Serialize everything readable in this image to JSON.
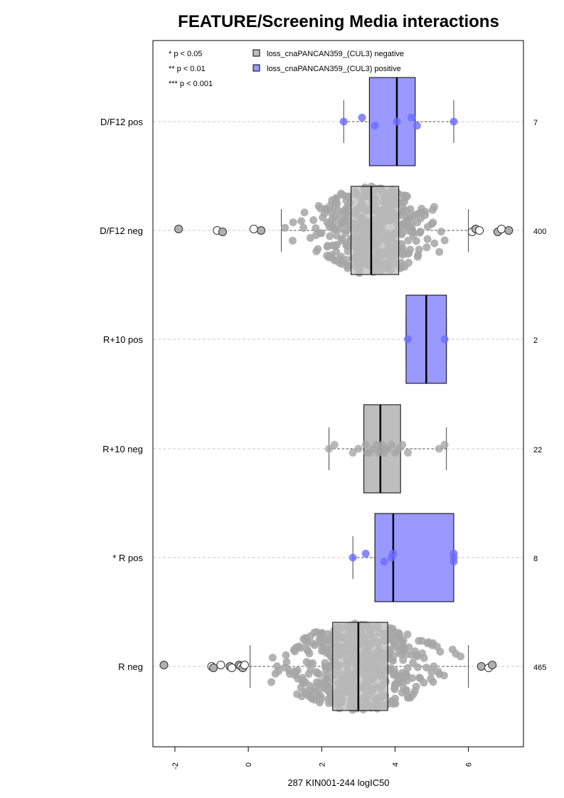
{
  "chart_data": {
    "type": "boxplot",
    "title": "FEATURE/Screening Media interactions",
    "xlabel": "287 KIN001-244 logIC50",
    "xlim": [
      -2.6,
      7.5
    ],
    "x_ticks": [
      "-2",
      "0",
      "2",
      "4",
      "6"
    ],
    "x_tick_values": [
      -2,
      0,
      2,
      4,
      6
    ],
    "grid": "horizontal dashed",
    "significance_legend": [
      "* p < 0.05",
      "** p < 0.01",
      "*** p < 0.001"
    ],
    "legend": {
      "position": "top",
      "entries": [
        {
          "label": "loss_cnaPANCAN359_(CUL3) negative",
          "color": "#bebebe"
        },
        {
          "label": "loss_cnaPANCAN359_(CUL3) positive",
          "color": "#9999ff"
        }
      ]
    },
    "colors": {
      "negative_box": "#bebebe",
      "positive_box": "#9999ff",
      "negative_point": "#a6a6a6",
      "positive_point": "#6b6bff"
    },
    "groups": [
      {
        "label": "D/F12 pos",
        "count": "7",
        "status": "positive",
        "whisker_low": 2.6,
        "q1": 3.3,
        "median": 4.05,
        "q3": 4.55,
        "whisker_high": 5.6,
        "points": [
          2.6,
          3.1,
          3.45,
          4.05,
          4.45,
          4.6,
          5.6
        ],
        "outliers": []
      },
      {
        "label": "D/F12 neg",
        "count": "400",
        "status": "negative",
        "whisker_low": 0.9,
        "q1": 2.8,
        "median": 3.35,
        "q3": 4.1,
        "whisker_high": 6.0,
        "points": [],
        "outliers": [
          -1.9,
          -0.85,
          -0.7,
          0.15,
          0.35,
          6.1,
          6.2,
          6.3,
          6.8,
          6.9,
          7.1
        ]
      },
      {
        "label": "R+10 pos",
        "count": "2",
        "status": "positive",
        "whisker_low": 4.3,
        "q1": 4.3,
        "median": 4.85,
        "q3": 5.4,
        "whisker_high": 5.4,
        "points": [
          4.35,
          5.35
        ],
        "outliers": []
      },
      {
        "label": "R+10 neg",
        "count": "22",
        "status": "negative",
        "whisker_low": 2.2,
        "q1": 3.15,
        "median": 3.6,
        "q3": 4.15,
        "whisker_high": 5.4,
        "points": [
          2.2,
          2.35,
          2.85,
          3.0,
          3.2,
          3.3,
          3.4,
          3.5,
          3.55,
          3.6,
          3.65,
          3.7,
          3.8,
          3.9,
          4.0,
          4.1,
          4.2,
          4.35,
          5.2,
          5.35,
          3.25,
          3.75
        ],
        "outliers": []
      },
      {
        "label": "* R pos",
        "count": "8",
        "status": "positive",
        "whisker_low": 2.85,
        "q1": 3.45,
        "median": 3.95,
        "q3": 5.6,
        "whisker_high": 5.6,
        "points": [
          2.85,
          3.2,
          3.7,
          3.9,
          3.95,
          5.6,
          5.6,
          5.6
        ],
        "outliers": []
      },
      {
        "label": "R neg",
        "count": "465",
        "status": "negative",
        "whisker_low": 0.05,
        "q1": 2.3,
        "median": 3.0,
        "q3": 3.8,
        "whisker_high": 6.0,
        "points": [],
        "outliers": [
          -2.3,
          -1.0,
          -0.95,
          -0.75,
          -0.5,
          -0.45,
          -0.25,
          -0.2,
          -0.15,
          -0.1,
          6.35,
          6.55,
          6.65
        ]
      }
    ]
  }
}
